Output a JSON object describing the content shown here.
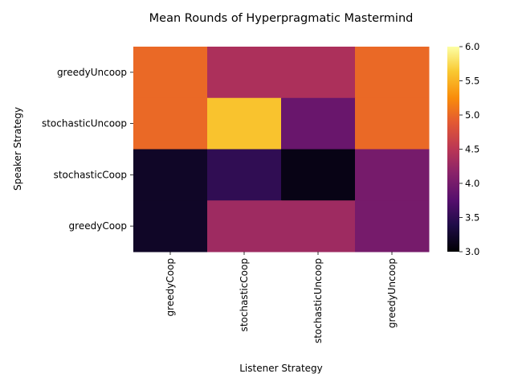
{
  "chart_data": {
    "type": "heatmap",
    "title": "Mean Rounds of Hyperpragmatic Mastermind",
    "xlabel": "Listener Strategy",
    "ylabel": "Speaker Strategy",
    "x_categories": [
      "greedyCoop",
      "stochasticCoop",
      "stochasticUncoop",
      "greedyUncoop"
    ],
    "y_categories": [
      "greedyUncoop",
      "stochasticUncoop",
      "stochasticCoop",
      "greedyCoop"
    ],
    "values": [
      [
        5.0,
        4.4,
        4.4,
        5.0
      ],
      [
        5.0,
        5.6,
        3.9,
        5.0
      ],
      [
        3.2,
        3.5,
        3.1,
        4.0
      ],
      [
        3.2,
        4.3,
        4.3,
        4.0
      ]
    ],
    "colorscale": "inferno",
    "vmin": 3.0,
    "vmax": 6.0,
    "colorbar_ticks": [
      "3.0",
      "3.5",
      "4.0",
      "4.5",
      "5.0",
      "5.5",
      "6.0"
    ]
  }
}
